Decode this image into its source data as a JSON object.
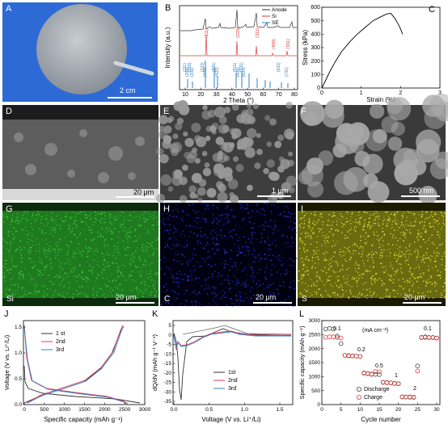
{
  "panels": {
    "A": {
      "label": "A",
      "scalebar": "2 cm"
    },
    "B": {
      "label": "B",
      "ylabel": "Intensity (a.u.)",
      "xlabel": "2 Theta (°)",
      "xticks": [
        "10",
        "20",
        "30",
        "40",
        "50",
        "60",
        "70",
        "80"
      ],
      "legend": [
        "Anode",
        "Si",
        "SE"
      ],
      "legend_colors": [
        "#333333",
        "#e03a3a",
        "#2f7fc1"
      ],
      "si_peaks": [
        "(111)",
        "(220)",
        "(311)",
        "(400)",
        "(331)"
      ],
      "se_peaks": [
        "(111)",
        "(200)",
        "(220)",
        "(311)",
        "(222)",
        "(400)",
        "(331)",
        "(422)",
        "(511)",
        "(440)",
        "(531)",
        "(620)",
        "(622)",
        "(731)"
      ]
    },
    "C": {
      "label": "C",
      "ylabel": "Stress (kPa)",
      "xlabel": "Strain (%)",
      "xticks": [
        "0",
        "1",
        "2",
        "3"
      ],
      "yticks": [
        "0",
        "100",
        "200",
        "300",
        "400",
        "500",
        "600"
      ]
    },
    "D": {
      "label": "D",
      "scalebar": "20 μm"
    },
    "E": {
      "label": "E",
      "scalebar": "1 μm"
    },
    "F": {
      "label": "F",
      "scalebar": "500 nm"
    },
    "G": {
      "label": "G",
      "element": "Si",
      "scalebar": "20 μm",
      "color": "#2aa02a"
    },
    "H": {
      "label": "H",
      "element": "C",
      "scalebar": "20 μm",
      "color": "#1a2ad0"
    },
    "I": {
      "label": "I",
      "element": "S",
      "scalebar": "20 μm",
      "color": "#d8d020"
    },
    "J": {
      "label": "J",
      "ylabel": "Voltage (V vs. Li⁺/Li)",
      "xlabel": "Specific capacity (mAh g⁻¹)",
      "xticks": [
        "0",
        "500",
        "1000",
        "1500",
        "2000",
        "2500",
        "3000"
      ],
      "yticks": [
        "0.0",
        "0.5",
        "1.0",
        "1.5"
      ],
      "legend": [
        "1 st",
        "2nd",
        "3rd"
      ],
      "legend_colors": [
        "#333333",
        "#e03a5a",
        "#2f7fc1"
      ]
    },
    "K": {
      "label": "K",
      "ylabel": "dQ/dV (mAh g⁻¹ V⁻¹)",
      "xlabel": "Voltage (V vs. Li⁺/Li)",
      "xticks": [
        "0.0",
        "0.5",
        "1.0",
        "1.5"
      ],
      "yticks": [
        "5",
        "0",
        "-5",
        "-10",
        "-15",
        "-20",
        "-25",
        "-30",
        "-35"
      ],
      "legend": [
        "1st",
        "2nd",
        "3rd"
      ],
      "legend_colors": [
        "#333333",
        "#e03a5a",
        "#2f7fc1"
      ]
    },
    "L": {
      "label": "L",
      "ylabel": "Specific capacity (mAh g⁻¹)",
      "xlabel": "Cycle number",
      "xticks": [
        "0",
        "5",
        "10",
        "15",
        "20",
        "25",
        "30"
      ],
      "yticks": [
        "0",
        "500",
        "1000",
        "1500",
        "2000",
        "2500",
        "3000"
      ],
      "unit_note": "(mA cm⁻²)",
      "rates": [
        "0.1",
        "0.2",
        "0.5",
        "1",
        "2",
        "0.1"
      ],
      "legend": [
        "Discharge",
        "Charge"
      ]
    }
  },
  "chart_data": [
    {
      "type": "line",
      "panel": "C",
      "x": [
        0,
        0.1,
        0.2,
        0.35,
        0.5,
        0.7,
        0.9,
        1.1,
        1.3,
        1.5,
        1.65,
        1.75,
        1.85,
        1.95,
        2.0,
        2.05
      ],
      "y": [
        0,
        60,
        120,
        200,
        270,
        340,
        400,
        450,
        500,
        530,
        550,
        555,
        520,
        470,
        440,
        400
      ],
      "xlim": [
        0,
        3
      ],
      "ylim": [
        0,
        600
      ]
    },
    {
      "type": "scatter",
      "panel": "L",
      "series": [
        {
          "name": "Discharge",
          "x": [
            1,
            2,
            3,
            4,
            5,
            6,
            7,
            8,
            9,
            10,
            11,
            12,
            13,
            14,
            15,
            16,
            17,
            18,
            19,
            20,
            21,
            22,
            23,
            24,
            25,
            26,
            27,
            28,
            29,
            30
          ],
          "values": [
            2700,
            2720,
            2700,
            2450,
            2180,
            1760,
            1740,
            1740,
            1730,
            1720,
            1130,
            1110,
            1090,
            1080,
            1070,
            800,
            790,
            780,
            760,
            750,
            280,
            270,
            270,
            265,
            1380,
            2400,
            2420,
            2400,
            2400,
            2380
          ]
        },
        {
          "name": "Charge",
          "x": [
            1,
            2,
            3,
            4,
            5,
            6,
            7,
            8,
            9,
            10,
            11,
            12,
            13,
            14,
            15,
            16,
            17,
            18,
            19,
            20,
            21,
            22,
            23,
            24,
            25,
            26,
            27,
            28,
            29,
            30
          ],
          "values": [
            2400,
            2420,
            2420,
            2390,
            2380,
            1760,
            1750,
            1740,
            1730,
            1720,
            1120,
            1100,
            1080,
            1180,
            1170,
            790,
            780,
            770,
            750,
            740,
            270,
            265,
            260,
            255,
            1200,
            2390,
            2400,
            2390,
            2390,
            2370
          ]
        }
      ],
      "xlim": [
        0,
        30
      ],
      "ylim": [
        0,
        3000
      ]
    }
  ]
}
